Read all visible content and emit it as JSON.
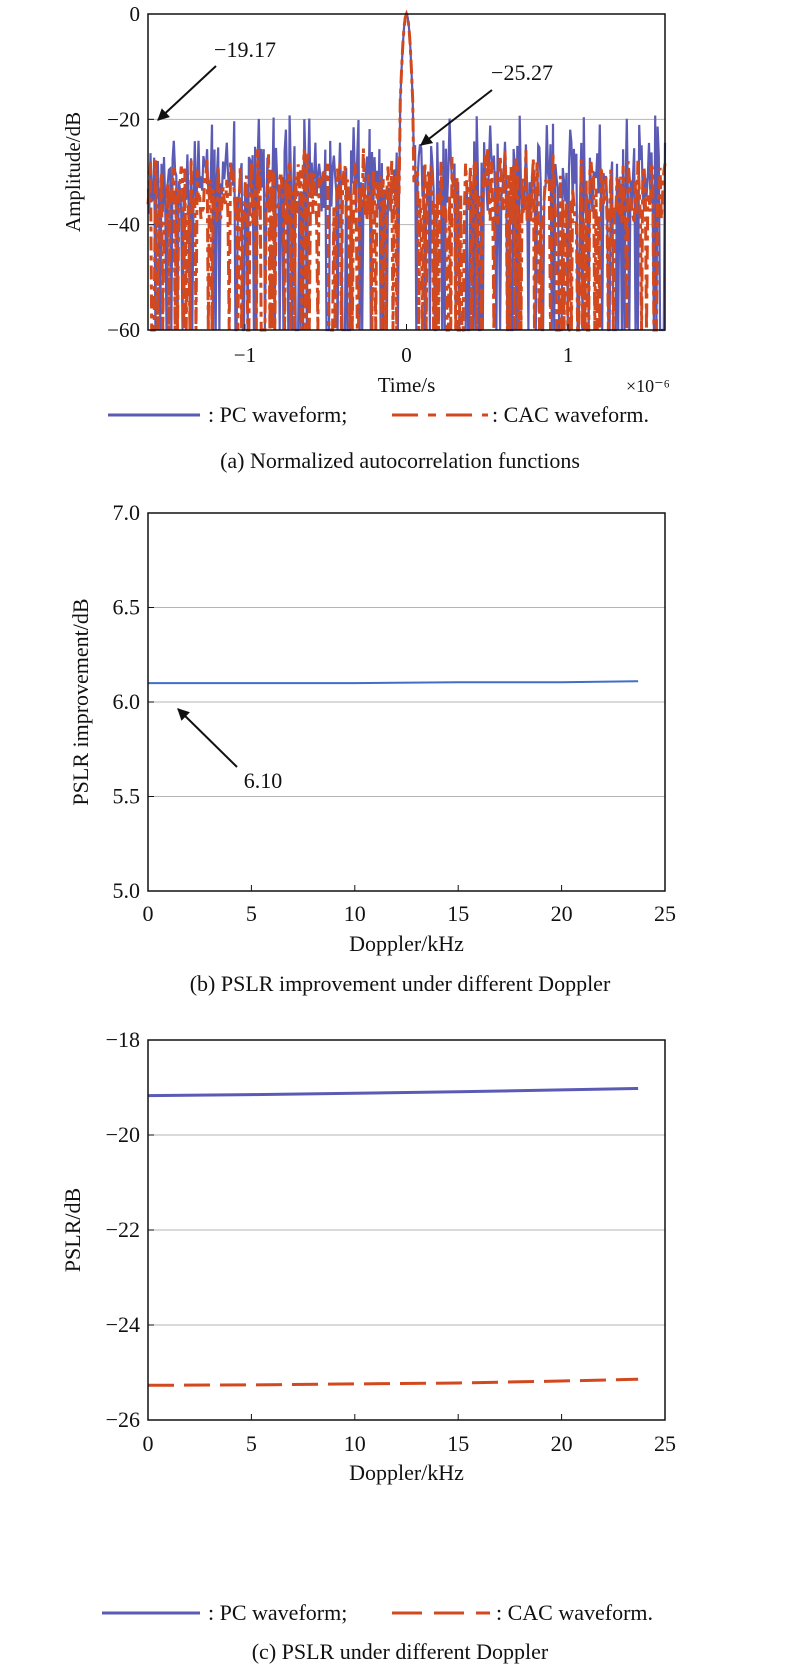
{
  "colors": {
    "pc": "#5b5bb5",
    "cac": "#d2491f",
    "pslr_line": "#3f6fc8",
    "grid": "#b5b5b5",
    "axis": "#111111"
  },
  "chart_data": [
    {
      "type": "line",
      "caption": "(a) Normalized autocorrelation functions",
      "xlabel": "Time/s",
      "x_multiplier": "×10⁻⁶",
      "ylabel": "Amplitude/dB",
      "xlim": [
        -1.6e-06,
        1.6e-06
      ],
      "ylim": [
        -60,
        0
      ],
      "xticks": [
        -1e-06,
        0,
        1e-06
      ],
      "xtick_labels": [
        "−1",
        "0",
        "1"
      ],
      "yticks": [
        0,
        -20,
        -40,
        -60
      ],
      "ytick_labels": [
        "0",
        "−20",
        "−40",
        "−60"
      ],
      "grid": "horizontal",
      "series": [
        {
          "name": "PC waveform",
          "style": "solid",
          "peak_db": 0,
          "sidelobe_db": -19.17
        },
        {
          "name": "CAC waveform",
          "style": "dashed",
          "peak_db": 0,
          "sidelobe_db": -25.27
        }
      ],
      "annotations": [
        {
          "text": "−19.17",
          "x": -1.55e-06,
          "y": -19.17
        },
        {
          "text": "−25.27",
          "x": 1e-07,
          "y": -25.27
        }
      ],
      "legend": {
        "items": [
          ": PC waveform;",
          ": CAC waveform."
        ],
        "position": "below"
      }
    },
    {
      "type": "line",
      "caption": "(b) PSLR improvement under different Doppler",
      "xlabel": "Doppler/kHz",
      "ylabel": "PSLR improvement/dB",
      "xlim": [
        0,
        25
      ],
      "ylim": [
        5.0,
        7.0
      ],
      "xticks": [
        0,
        5,
        10,
        15,
        20,
        25
      ],
      "xtick_labels": [
        "0",
        "5",
        "10",
        "15",
        "20",
        "25"
      ],
      "yticks": [
        5.0,
        5.5,
        6.0,
        6.5,
        7.0
      ],
      "ytick_labels": [
        "5.0",
        "5.5",
        "6.0",
        "6.5",
        "7.0"
      ],
      "grid": "horizontal",
      "series": [
        {
          "style": "solid",
          "x": [
            0,
            5,
            10,
            15,
            20,
            23.7
          ],
          "y": [
            6.1,
            6.1,
            6.1,
            6.105,
            6.105,
            6.11
          ]
        }
      ],
      "annotations": [
        {
          "text": "6.10",
          "x": 1.5,
          "y": 6.1
        }
      ]
    },
    {
      "type": "line",
      "caption": "(c) PSLR under different Doppler",
      "xlabel": "Doppler/kHz",
      "ylabel": "PSLR/dB",
      "xlim": [
        0,
        25
      ],
      "ylim": [
        -26,
        -18
      ],
      "xticks": [
        0,
        5,
        10,
        15,
        20,
        25
      ],
      "xtick_labels": [
        "0",
        "5",
        "10",
        "15",
        "20",
        "25"
      ],
      "yticks": [
        -18,
        -20,
        -22,
        -24,
        -26
      ],
      "ytick_labels": [
        "−18",
        "−20",
        "−22",
        "−24",
        "−26"
      ],
      "grid": "horizontal",
      "series": [
        {
          "name": "PC waveform",
          "style": "solid",
          "x": [
            0,
            5,
            10,
            15,
            20,
            23.7
          ],
          "y": [
            -19.17,
            -19.15,
            -19.12,
            -19.09,
            -19.05,
            -19.02
          ]
        },
        {
          "name": "CAC waveform",
          "style": "dashed",
          "x": [
            0,
            5,
            10,
            15,
            20,
            23.7
          ],
          "y": [
            -25.27,
            -25.26,
            -25.24,
            -25.22,
            -25.18,
            -25.14
          ]
        }
      ],
      "legend": {
        "items": [
          ": PC waveform;",
          ": CAC waveform."
        ],
        "position": "below"
      }
    }
  ]
}
